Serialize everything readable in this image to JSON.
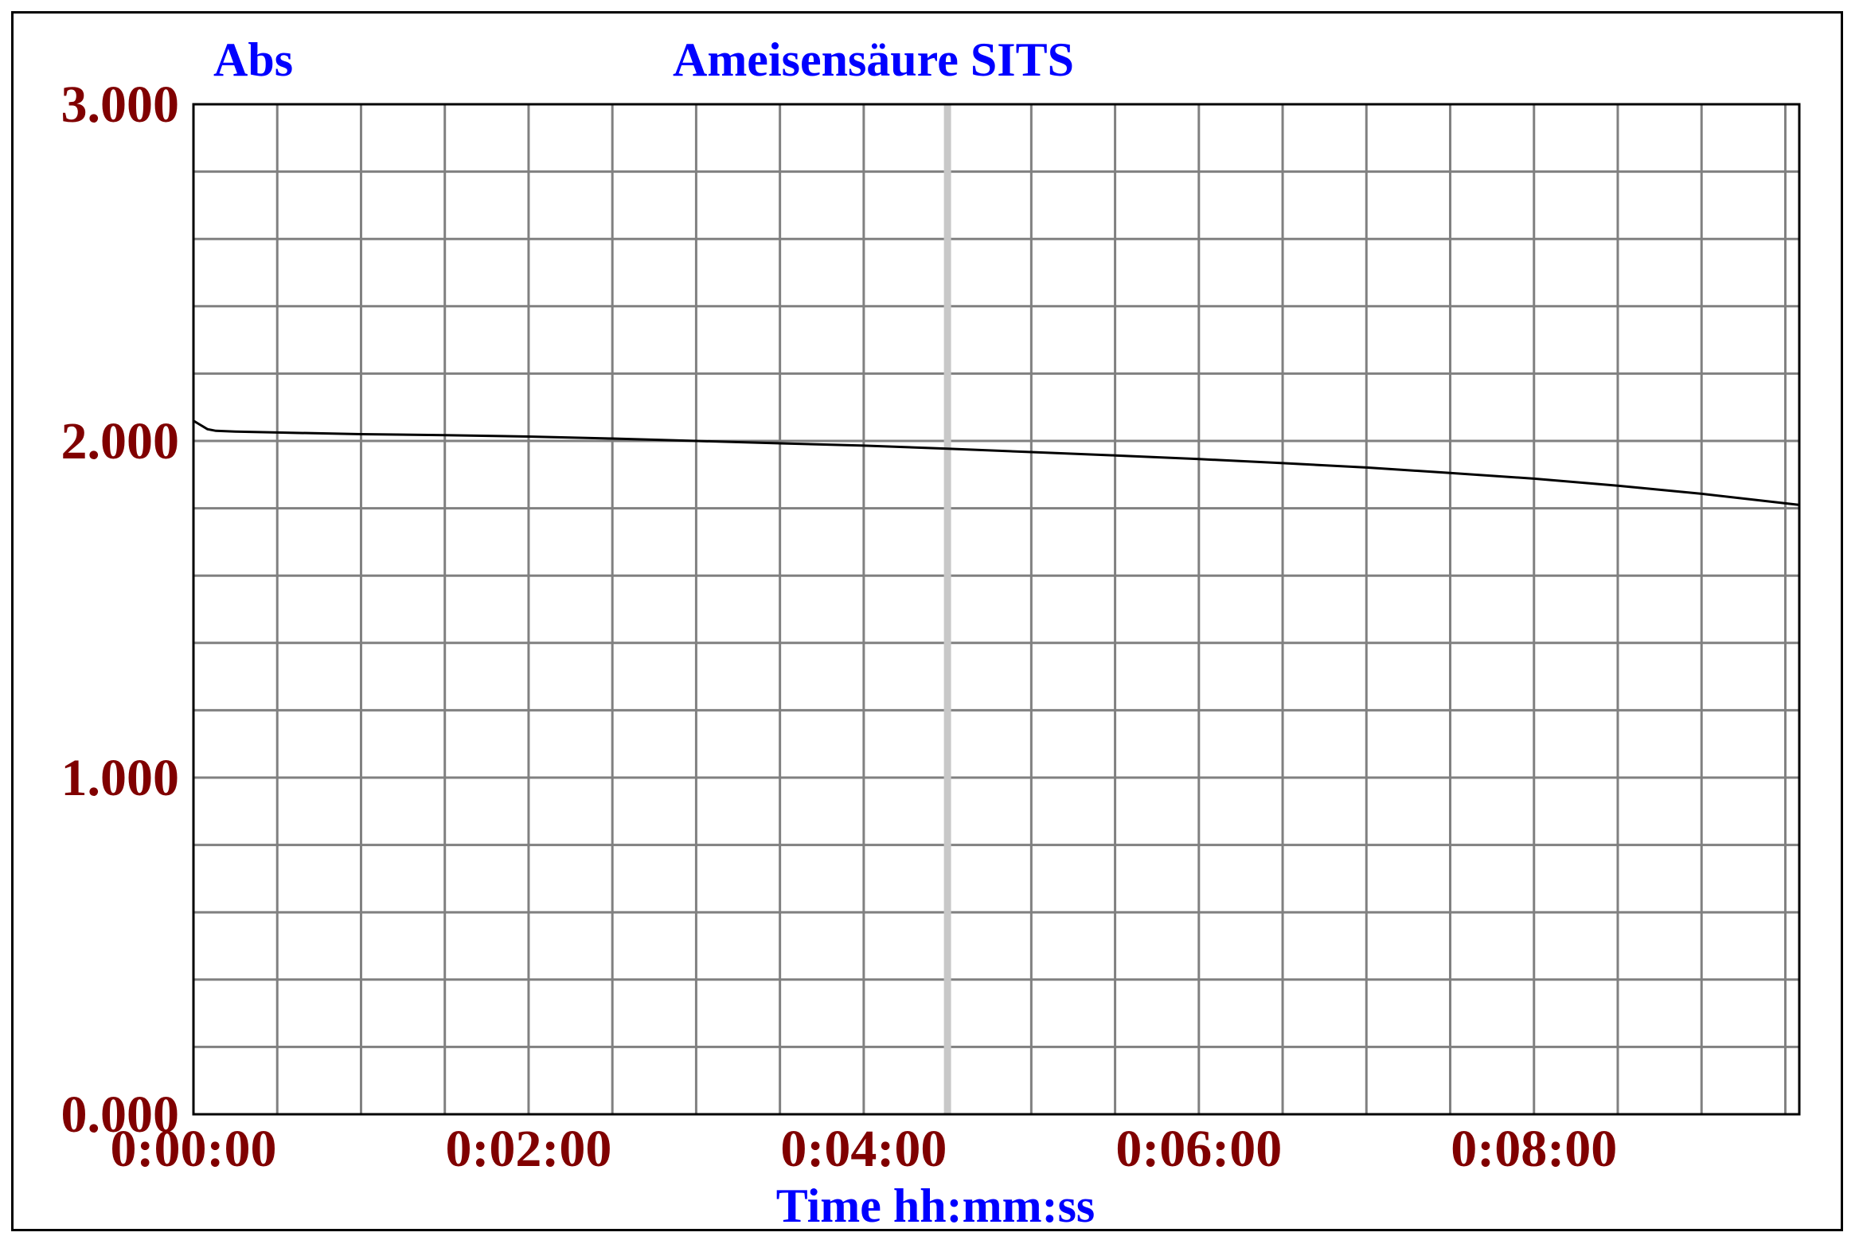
{
  "chart_data": {
    "type": "line",
    "title": "Ameisensäure SITS",
    "ylabel": "Abs",
    "xlabel": "Time hh:mm:ss",
    "xlim_seconds": [
      0,
      575
    ],
    "ylim": [
      0,
      3
    ],
    "grid": true,
    "x_tick_labels": [
      "0:00:00",
      "0:02:00",
      "0:04:00",
      "0:06:00",
      "0:08:00"
    ],
    "x_tick_seconds": [
      0,
      120,
      240,
      360,
      480
    ],
    "y_tick_labels": [
      "0.000",
      "1.000",
      "2.000",
      "3.000"
    ],
    "y_tick_values": [
      0,
      1,
      2,
      3
    ],
    "cursor_seconds": 270,
    "series": [
      {
        "color": "#000000",
        "points": [
          [
            0,
            2.06
          ],
          [
            2,
            2.05
          ],
          [
            5,
            2.035
          ],
          [
            8,
            2.03
          ],
          [
            15,
            2.028
          ],
          [
            30,
            2.025
          ],
          [
            60,
            2.02
          ],
          [
            90,
            2.017
          ],
          [
            120,
            2.013
          ],
          [
            150,
            2.007
          ],
          [
            180,
            2.0
          ],
          [
            210,
            1.993
          ],
          [
            240,
            1.986
          ],
          [
            270,
            1.977
          ],
          [
            300,
            1.967
          ],
          [
            330,
            1.957
          ],
          [
            360,
            1.946
          ],
          [
            390,
            1.934
          ],
          [
            420,
            1.921
          ],
          [
            450,
            1.905
          ],
          [
            480,
            1.888
          ],
          [
            510,
            1.867
          ],
          [
            540,
            1.843
          ],
          [
            560,
            1.824
          ],
          [
            575,
            1.81
          ]
        ]
      }
    ],
    "colors": {
      "title": "#0000ff",
      "tick_labels": "#800000",
      "grid": "#808080",
      "line": "#000000",
      "cursor": "#c8c8c8"
    }
  }
}
